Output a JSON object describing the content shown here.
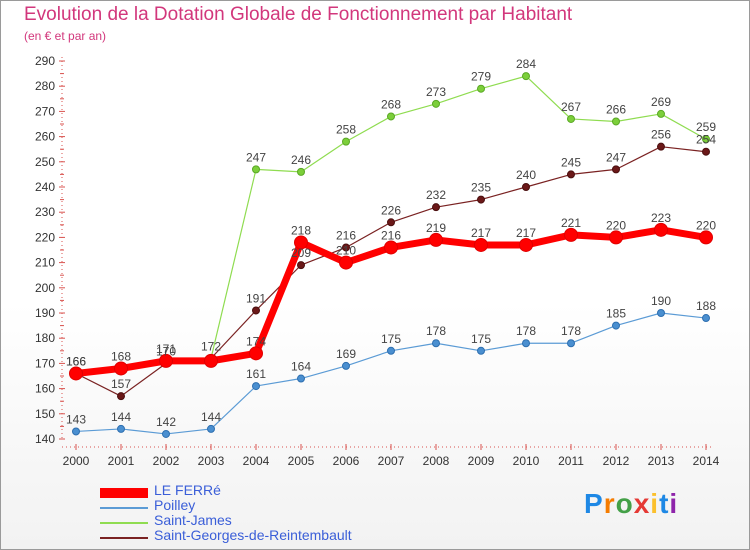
{
  "title": "Evolution de la Dotation Globale de Fonctionnement par Habitant",
  "subtitle": "(en € et par an)",
  "watermark": "Proxiti",
  "chart_data": {
    "type": "line",
    "title": "Evolution de la Dotation Globale de Fonctionnement par Habitant",
    "subtitle": "(en € et par an)",
    "xlabel": "",
    "ylabel": "",
    "x": [
      "2000",
      "2001",
      "2002",
      "2003",
      "2004",
      "2005",
      "2006",
      "2007",
      "2008",
      "2009",
      "2010",
      "2011",
      "2012",
      "2013",
      "2014"
    ],
    "ylim": [
      140,
      290
    ],
    "yticks": [
      140,
      150,
      160,
      170,
      180,
      190,
      200,
      210,
      220,
      230,
      240,
      250,
      260,
      270,
      280,
      290
    ],
    "grid": false,
    "legend_position": "bottom",
    "series": [
      {
        "name": "LE FERRé",
        "color": "#ff0000",
        "values": [
          166,
          168,
          171,
          171,
          174,
          218,
          210,
          216,
          219,
          217,
          217,
          221,
          220,
          223,
          220
        ],
        "labels": [
          "166",
          "168",
          "171",
          "",
          "174",
          "218",
          "210",
          "216",
          "219",
          "217",
          "217",
          "221",
          "220",
          "223",
          "220"
        ]
      },
      {
        "name": "Poilley",
        "color": "#5b9bd5",
        "values": [
          143,
          144,
          142,
          144,
          161,
          164,
          169,
          175,
          178,
          175,
          178,
          178,
          185,
          190,
          188
        ],
        "labels": [
          "143",
          "144",
          "142",
          "144",
          "161",
          "164",
          "169",
          "175",
          "178",
          "175",
          "178",
          "178",
          "185",
          "190",
          "188"
        ]
      },
      {
        "name": "Saint-James",
        "color": "#8fdc50",
        "values": [
          166,
          167,
          171,
          172,
          247,
          246,
          258,
          268,
          273,
          279,
          284,
          267,
          266,
          269,
          259
        ],
        "labels": [
          "",
          "",
          "",
          "172",
          "247",
          "246",
          "258",
          "268",
          "273",
          "279",
          "284",
          "267",
          "266",
          "269",
          "259"
        ]
      },
      {
        "name": "Saint-Georges-de-Reintembault",
        "color": "#7a2222",
        "values": [
          166,
          157,
          170,
          172,
          191,
          209,
          216,
          226,
          232,
          235,
          240,
          245,
          247,
          256,
          254
        ],
        "labels": [
          "166",
          "157",
          "170",
          "",
          "191",
          "209",
          "216",
          "226",
          "232",
          "235",
          "240",
          "245",
          "247",
          "256",
          "254"
        ]
      }
    ]
  }
}
